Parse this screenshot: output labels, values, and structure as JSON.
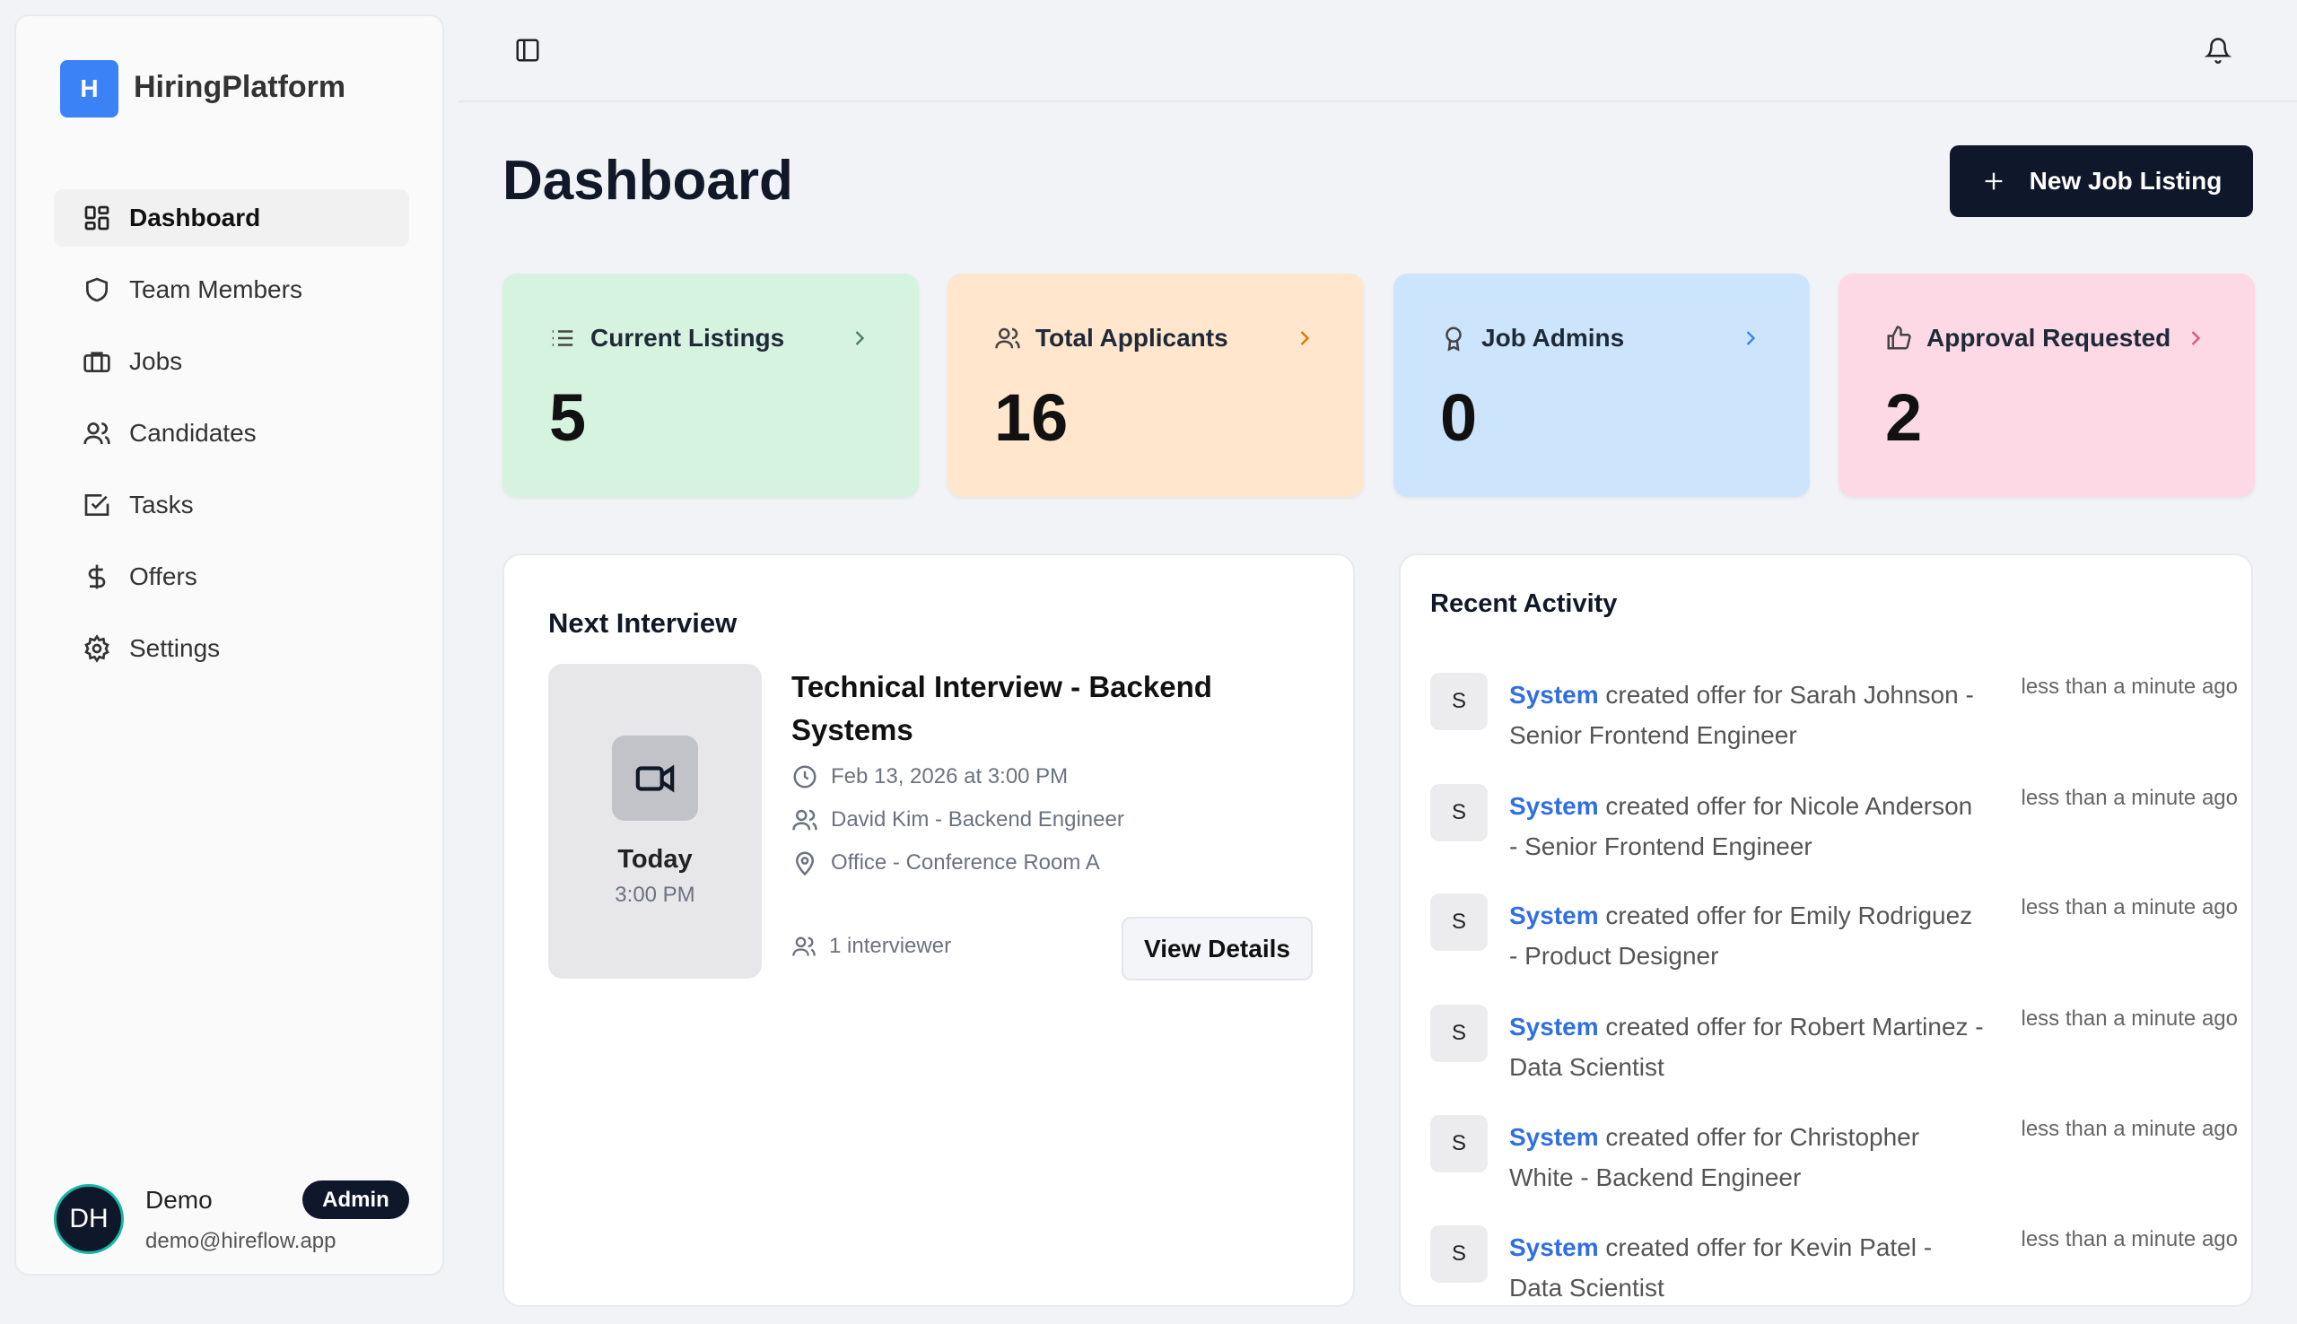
{
  "app": {
    "name": "HiringPlatform",
    "logo_letter": "H"
  },
  "sidebar": {
    "items": [
      {
        "label": "Dashboard",
        "icon": "dashboard-icon",
        "active": true
      },
      {
        "label": "Team Members",
        "icon": "shield-icon"
      },
      {
        "label": "Jobs",
        "icon": "briefcase-icon"
      },
      {
        "label": "Candidates",
        "icon": "users-icon"
      },
      {
        "label": "Tasks",
        "icon": "check-square-icon"
      },
      {
        "label": "Offers",
        "icon": "dollar-icon"
      },
      {
        "label": "Settings",
        "icon": "gear-icon"
      }
    ]
  },
  "user": {
    "initials": "DH",
    "name": "Demo",
    "role": "Admin",
    "email": "demo@hireflow.app"
  },
  "header": {
    "title": "Dashboard",
    "new_button": "New Job Listing"
  },
  "stats": [
    {
      "label": "Current Listings",
      "value": "5",
      "bg": "#d6f3e0",
      "accent": "#4a7c59"
    },
    {
      "label": "Total Applicants",
      "value": "16",
      "bg": "#ffe6cc",
      "accent": "#d97706"
    },
    {
      "label": "Job Admins",
      "value": "0",
      "bg": "#cce5fc",
      "accent": "#3b82f6"
    },
    {
      "label": "Approval Requested",
      "value": "2",
      "bg": "#fdd9e5",
      "accent": "#e05580"
    }
  ],
  "next_interview": {
    "title": "Next Interview",
    "day": "Today",
    "time": "3:00 PM",
    "name": "Technical Interview - Backend Systems",
    "datetime": "Feb 13, 2026 at 3:00 PM",
    "candidate": "David Kim - Backend Engineer",
    "location": "Office - Conference Room A",
    "interviewers": "1 interviewer",
    "view_button": "View Details"
  },
  "recent_activity": {
    "title": "Recent Activity",
    "items": [
      {
        "avatar": "S",
        "actor": "System",
        "text": " created offer for Sarah Johnson - Senior Frontend Engineer",
        "time": "less than a minute ago"
      },
      {
        "avatar": "S",
        "actor": "System",
        "text": " created offer for Nicole Anderson - Senior Frontend Engineer",
        "time": "less than a minute ago"
      },
      {
        "avatar": "S",
        "actor": "System",
        "text": " created offer for Emily Rodriguez - Product Designer",
        "time": "less than a minute ago"
      },
      {
        "avatar": "S",
        "actor": "System",
        "text": " created offer for Robert Martinez - Data Scientist",
        "time": "less than a minute ago"
      },
      {
        "avatar": "S",
        "actor": "System",
        "text": " created offer for Christopher White - Backend Engineer",
        "time": "less than a minute ago"
      },
      {
        "avatar": "S",
        "actor": "System",
        "text": " created offer for Kevin Patel - Data Scientist",
        "time": "less than a minute ago"
      }
    ]
  }
}
